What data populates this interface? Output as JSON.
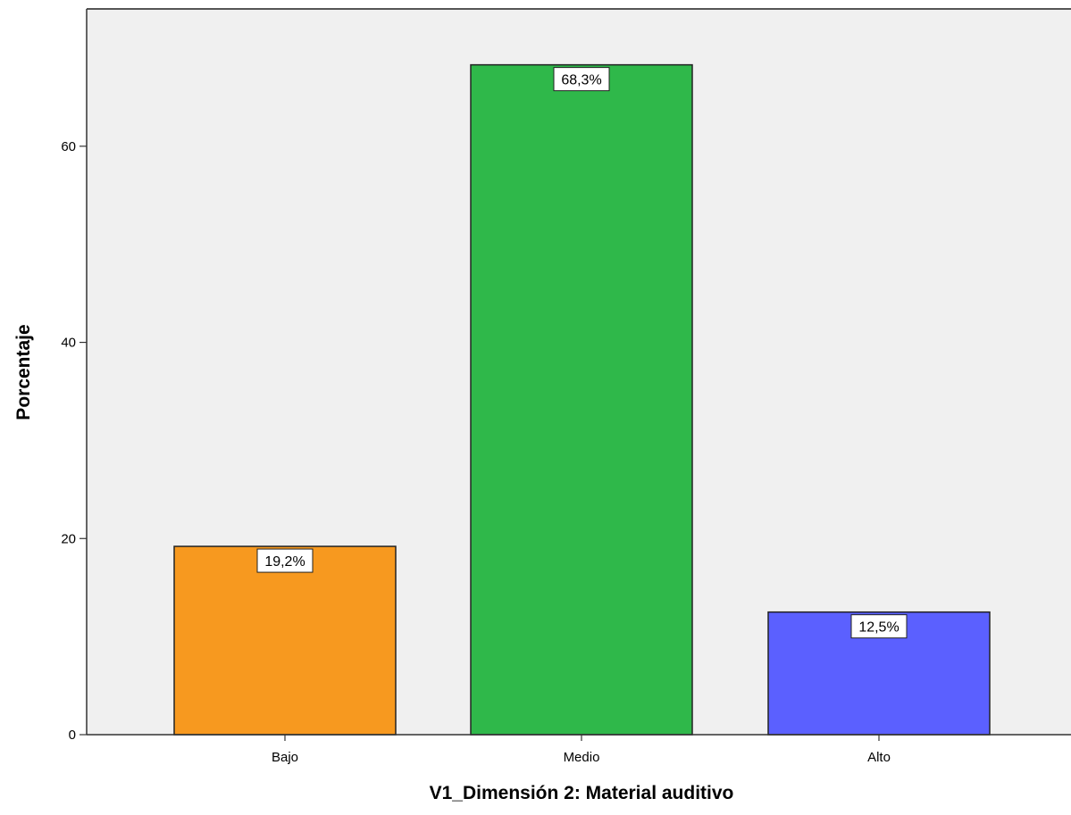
{
  "chart_data": {
    "type": "bar",
    "title": "",
    "xlabel": "V1_Dimensión 2: Material auditivo",
    "ylabel": "Porcentaje",
    "categories": [
      "Bajo",
      "Medio",
      "Alto"
    ],
    "values": [
      19.2,
      68.3,
      12.5
    ],
    "value_labels": [
      "19,2%",
      "68,3%",
      "12,5%"
    ],
    "colors": [
      "#f7991f",
      "#2fb84a",
      "#5b60ff"
    ],
    "ylim": [
      0,
      74
    ],
    "yticks": [
      0,
      20,
      40,
      60
    ],
    "grid": false,
    "legend": "none",
    "plot_background": "#f0f0f0"
  }
}
